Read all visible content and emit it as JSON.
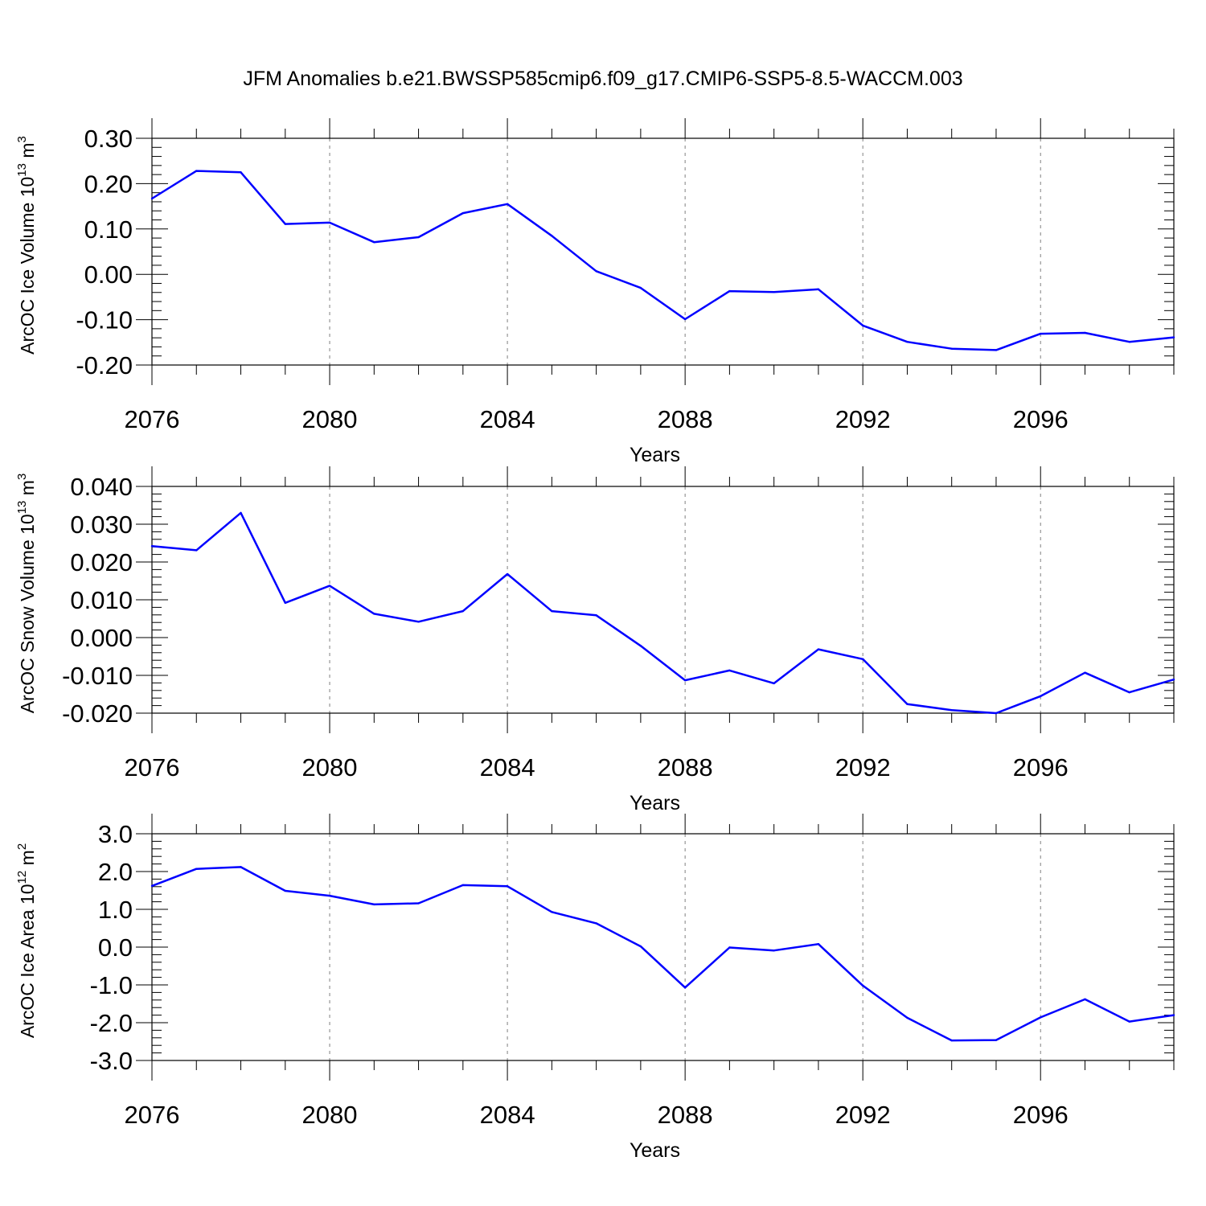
{
  "title": "JFM Anomalies b.e21.BWSSP585cmip6.f09_g17.CMIP6-SSP5-8.5-WACCM.003",
  "colors": {
    "series": "#0000ff",
    "axes": "#000000",
    "grid": "#808080"
  },
  "chart_data": [
    {
      "type": "line",
      "ylabel": {
        "text": "ArcOC Ice Volume 10",
        "exp": "13",
        "unit": " m",
        "unit_exp": "3"
      },
      "xlabel": "Years",
      "xlim": [
        2076,
        2099
      ],
      "ylim": [
        -0.2,
        0.3
      ],
      "x_ticks": [
        2076,
        2080,
        2084,
        2088,
        2092,
        2096
      ],
      "x_tick_labels": [
        "2076",
        "2080",
        "2084",
        "2088",
        "2092",
        "2096"
      ],
      "y_ticks": [
        0.3,
        0.2,
        0.1,
        0.0,
        -0.1,
        -0.2
      ],
      "y_tick_labels": [
        "0.30",
        "0.20",
        "0.10",
        "0.00",
        "-0.10",
        "-0.20"
      ],
      "grid": "vertical dashed at major x ticks",
      "x": [
        2076,
        2077,
        2078,
        2079,
        2080,
        2081,
        2082,
        2083,
        2084,
        2085,
        2086,
        2087,
        2088,
        2089,
        2090,
        2091,
        2092,
        2093,
        2094,
        2095,
        2096,
        2097,
        2098,
        2099
      ],
      "values": [
        0.167,
        0.228,
        0.225,
        0.111,
        0.114,
        0.071,
        0.082,
        0.135,
        0.155,
        0.085,
        0.007,
        -0.03,
        -0.099,
        -0.037,
        -0.039,
        -0.033,
        -0.113,
        -0.149,
        -0.164,
        -0.167,
        -0.131,
        -0.129,
        -0.149,
        -0.139
      ]
    },
    {
      "type": "line",
      "ylabel": {
        "text": "ArcOC Snow Volume 10",
        "exp": "13",
        "unit": " m",
        "unit_exp": "3"
      },
      "xlabel": "Years",
      "xlim": [
        2076,
        2099
      ],
      "ylim": [
        -0.02,
        0.04
      ],
      "x_ticks": [
        2076,
        2080,
        2084,
        2088,
        2092,
        2096
      ],
      "x_tick_labels": [
        "2076",
        "2080",
        "2084",
        "2088",
        "2092",
        "2096"
      ],
      "y_ticks": [
        0.04,
        0.03,
        0.02,
        0.01,
        0.0,
        -0.01,
        -0.02
      ],
      "y_tick_labels": [
        "0.040",
        "0.030",
        "0.020",
        "0.010",
        "0.000",
        "-0.010",
        "-0.020"
      ],
      "grid": "vertical dashed at major x ticks",
      "x": [
        2076,
        2077,
        2078,
        2079,
        2080,
        2081,
        2082,
        2083,
        2084,
        2085,
        2086,
        2087,
        2088,
        2089,
        2090,
        2091,
        2092,
        2093,
        2094,
        2095,
        2096,
        2097,
        2098,
        2099
      ],
      "values": [
        0.0242,
        0.0231,
        0.033,
        0.0092,
        0.0137,
        0.0063,
        0.0042,
        0.007,
        0.0168,
        0.007,
        0.0059,
        -0.0022,
        -0.0113,
        -0.0087,
        -0.0121,
        -0.0031,
        -0.0057,
        -0.0176,
        -0.0192,
        -0.02,
        -0.0155,
        -0.0093,
        -0.0145,
        -0.0111
      ]
    },
    {
      "type": "line",
      "ylabel": {
        "text": "ArcOC Ice Area 10",
        "exp": "12",
        "unit": " m",
        "unit_exp": "2"
      },
      "xlabel": "Years",
      "xlim": [
        2076,
        2099
      ],
      "ylim": [
        -3.0,
        3.0
      ],
      "x_ticks": [
        2076,
        2080,
        2084,
        2088,
        2092,
        2096
      ],
      "x_tick_labels": [
        "2076",
        "2080",
        "2084",
        "2088",
        "2092",
        "2096"
      ],
      "y_ticks": [
        3.0,
        2.0,
        1.0,
        0.0,
        -1.0,
        -2.0,
        -3.0
      ],
      "y_tick_labels": [
        "3.0",
        "2.0",
        "1.0",
        "0.0",
        "-1.0",
        "-2.0",
        "-3.0"
      ],
      "grid": "vertical dashed at major x ticks",
      "x": [
        2076,
        2077,
        2078,
        2079,
        2080,
        2081,
        2082,
        2083,
        2084,
        2085,
        2086,
        2087,
        2088,
        2089,
        2090,
        2091,
        2092,
        2093,
        2094,
        2095,
        2096,
        2097,
        2098,
        2099
      ],
      "values": [
        1.62,
        2.07,
        2.12,
        1.49,
        1.36,
        1.13,
        1.16,
        1.64,
        1.61,
        0.93,
        0.63,
        0.02,
        -1.07,
        -0.01,
        -0.09,
        0.08,
        -1.02,
        -1.87,
        -2.47,
        -2.46,
        -1.86,
        -1.38,
        -1.97,
        -1.8
      ]
    }
  ]
}
